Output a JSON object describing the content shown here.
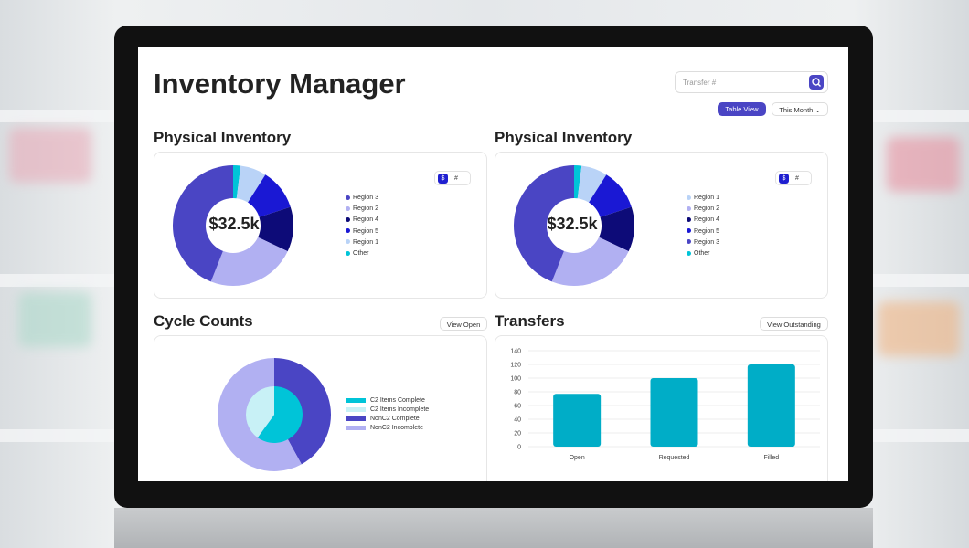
{
  "colors": {
    "indigo": "#4a45c4",
    "lavender": "#b1b0f2",
    "navy": "#0d0b78",
    "blue": "#1a18d4",
    "lightblue": "#b9d3f7",
    "cyan": "#00c4d8",
    "bar": "#00adc7",
    "lightcyan": "#c8f1f6"
  },
  "header": {
    "title": "Inventory Manager",
    "search_placeholder": "Transfer #",
    "search_icon": "search-icon",
    "table_view": "Table View",
    "period": "This Month"
  },
  "panels": [
    {
      "title": "Physical Inventory",
      "center": "$32.5k",
      "toggle": [
        "$",
        "#"
      ],
      "legend": [
        "Region 3",
        "Region 2",
        "Region 4",
        "Region 5",
        "Region 1",
        "Other"
      ],
      "chart_data": {
        "type": "pie",
        "variant": "donut",
        "labels": [
          "Other",
          "Region 1",
          "Region 5",
          "Region 4",
          "Region 2",
          "Region 3"
        ],
        "values": [
          2,
          7,
          11,
          12,
          24,
          44
        ],
        "colors": [
          "#00c4d8",
          "#b9d3f7",
          "#1a18d4",
          "#0d0b78",
          "#b1b0f2",
          "#4a45c4"
        ]
      }
    },
    {
      "title": "Physical Inventory",
      "center": "$32.5k",
      "toggle": [
        "$",
        "#"
      ],
      "legend": [
        "Region 1",
        "Region 2",
        "Region 4",
        "Region 5",
        "Region 3",
        "Other"
      ],
      "chart_data": {
        "type": "pie",
        "variant": "donut",
        "labels": [
          "Other",
          "Region 1",
          "Region 5",
          "Region 4",
          "Region 2",
          "Region 3"
        ],
        "values": [
          2,
          7,
          11,
          12,
          24,
          44
        ],
        "colors": [
          "#00c4d8",
          "#b9d3f7",
          "#1a18d4",
          "#0d0b78",
          "#b1b0f2",
          "#4a45c4"
        ]
      }
    }
  ],
  "cycle": {
    "title": "Cycle Counts",
    "button": "View Open",
    "legend": [
      "C2 Items Complete",
      "C2 Items Incomplete",
      "NonC2 Complete",
      "NonC2 Incomplete"
    ],
    "chart_data": {
      "type": "pie",
      "outer": {
        "labels": [
          "NonC2 Complete",
          "NonC2 Incomplete"
        ],
        "values": [
          42,
          58
        ]
      },
      "inner": {
        "labels": [
          "C2 Items Complete",
          "C2 Items Incomplete"
        ],
        "values": [
          60,
          40
        ]
      }
    }
  },
  "transfers": {
    "title": "Transfers",
    "button": "View Outstanding",
    "chart_data": {
      "type": "bar",
      "categories": [
        "Open",
        "Requested",
        "Filled"
      ],
      "values": [
        77,
        100,
        120
      ],
      "ylim": [
        0,
        140
      ],
      "yticks": [
        "0",
        "20",
        "40",
        "60",
        "80",
        "100",
        "120",
        "140"
      ],
      "grid": true
    }
  }
}
